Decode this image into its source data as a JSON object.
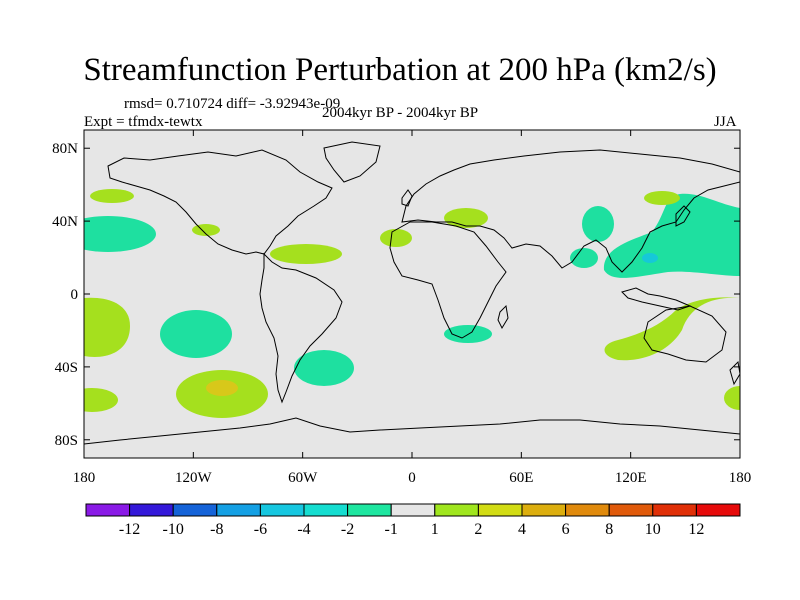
{
  "title": "Streamfunction Perturbation at 200 hPa (km2/s)",
  "stats_text": "rmsd= 0.710724 diff= -3.92943e-09",
  "experiment_text": "Expt = tfmdx-tewtx",
  "period_text": "2004kyr BP - 2004kyr BP",
  "season_text": "JJA",
  "lat_labels": [
    "80N",
    "40N",
    "0",
    "40S",
    "80S"
  ],
  "lon_labels": [
    "180",
    "120W",
    "60W",
    "0",
    "60E",
    "120E",
    "180"
  ],
  "colorbar": {
    "labels": [
      "-12",
      "-10",
      "-8",
      "-6",
      "-4",
      "-2",
      "-1",
      "1",
      "2",
      "4",
      "6",
      "8",
      "10",
      "12"
    ],
    "colors": [
      "#8a1ae6",
      "#3418d9",
      "#1563d8",
      "#14a0e4",
      "#16c7e0",
      "#15ddd0",
      "#1ee6a0",
      "#e6e6e6",
      "#a0e61e",
      "#d2dc14",
      "#dcae0e",
      "#e08a0c",
      "#e05a0a",
      "#e03008",
      "#e60a0a"
    ]
  },
  "colors": {
    "background": "#e6e6e6",
    "pos_1_2": "#a5e01e",
    "pos_2_4": "#d8c81a",
    "neg_1_2": "#1ee0a0",
    "neg_2_4": "#16c8d8",
    "coast": "#000000"
  }
}
